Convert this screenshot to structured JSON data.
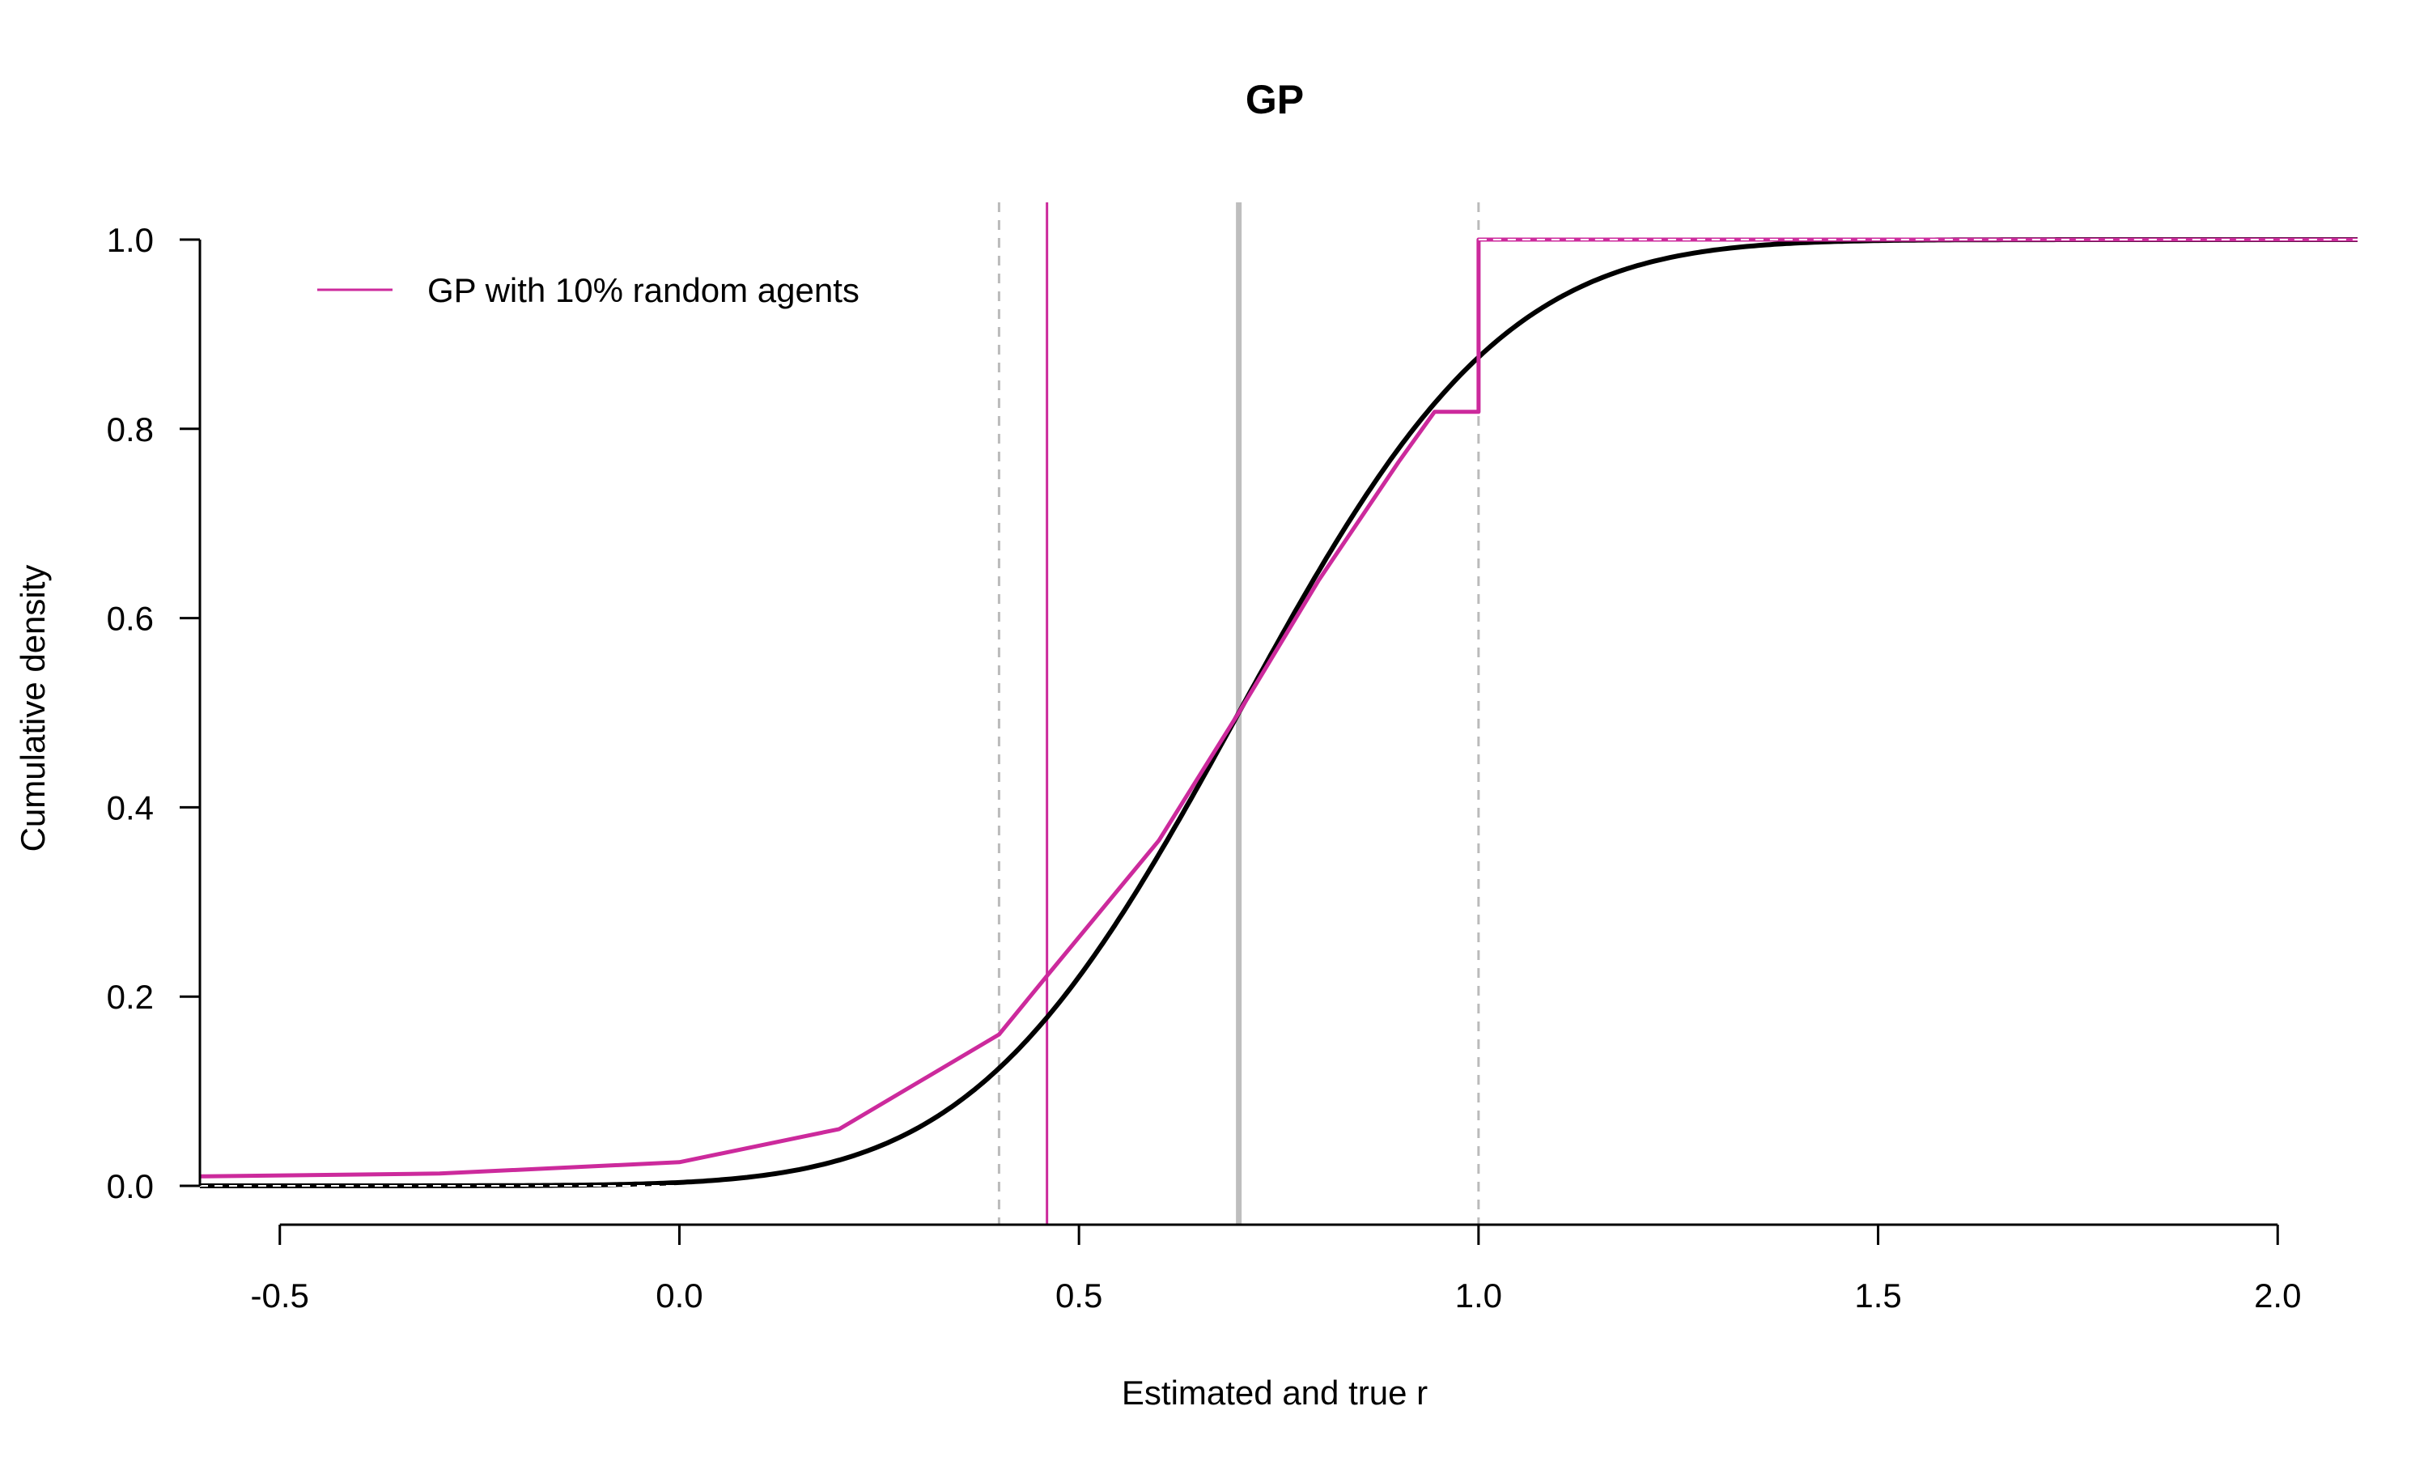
{
  "chart_data": {
    "type": "line",
    "title": "GP",
    "xlabel": "Estimated and true r",
    "ylabel": "Cumulative density",
    "xlim": [
      -0.6,
      2.1
    ],
    "ylim": [
      0.0,
      1.0
    ],
    "x_ticks": [
      "-0.5",
      "0.0",
      "0.5",
      "1.0",
      "1.5",
      "2.0"
    ],
    "y_ticks": [
      "0.0",
      "0.2",
      "0.4",
      "0.6",
      "0.8",
      "1.0"
    ],
    "grid": false,
    "legend": {
      "position": "top-left",
      "entries": [
        {
          "label": "GP with 10% random agents",
          "color": "#CC2A9C"
        }
      ]
    },
    "series": [
      {
        "color": "#000000",
        "kind": "normal-cdf",
        "mean": 0.7,
        "sd": 0.26,
        "x": [
          -0.6,
          -0.3,
          0.0,
          0.2,
          0.4,
          0.5,
          0.6,
          0.7,
          0.8,
          0.9,
          1.0,
          1.2,
          1.5,
          2.1
        ],
        "y": [
          0.0,
          0.0,
          0.004,
          0.027,
          0.124,
          0.221,
          0.351,
          0.5,
          0.649,
          0.779,
          0.876,
          0.973,
          0.999,
          1.0
        ]
      },
      {
        "name": "GP with 10% random agents",
        "color": "#CC2A9C",
        "kind": "censored-cdf",
        "x": [
          -0.6,
          -0.3,
          0.0,
          0.2,
          0.4,
          0.46,
          0.6,
          0.7,
          0.8,
          0.9,
          0.945,
          0.945,
          1.0,
          1.0,
          2.1
        ],
        "y": [
          0.01,
          0.013,
          0.025,
          0.06,
          0.16,
          0.222,
          0.365,
          0.5,
          0.64,
          0.765,
          0.818,
          0.818,
          0.818,
          1.0,
          1.0
        ]
      }
    ],
    "reference_lines": [
      {
        "x": 0.4,
        "style": "dashed",
        "color": "#BBBBBB"
      },
      {
        "x": 1.0,
        "style": "dashed",
        "color": "#BBBBBB"
      },
      {
        "x": 0.7,
        "style": "solid",
        "color": "#BEBEBE"
      },
      {
        "x": 0.46,
        "style": "solid",
        "color": "#CC2A9C"
      }
    ],
    "horizontal_dashed": [
      {
        "y": 0.0,
        "color": "#FFFFFF"
      },
      {
        "y": 1.0,
        "color": "#FFFFFF"
      }
    ]
  }
}
